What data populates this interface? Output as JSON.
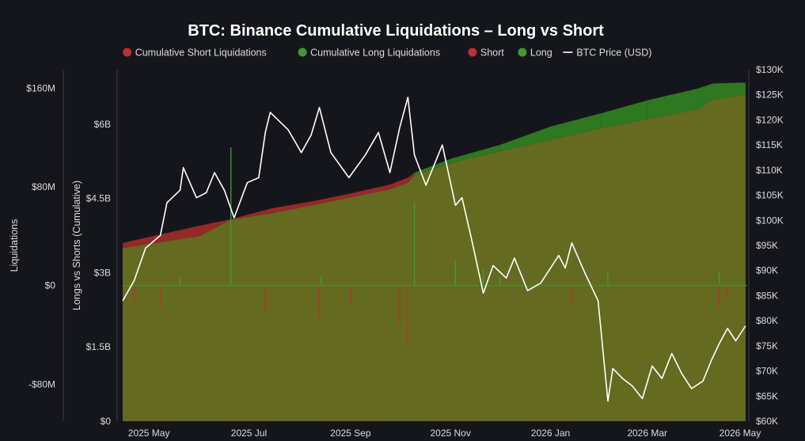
{
  "chart_data": {
    "type": "line",
    "title": "BTC: Binance Cumulative Liquidations – Long vs Short",
    "legend": {
      "placement": "top-center",
      "entries": [
        {
          "label": "Cumulative Short Liquidations",
          "color": "#b83232",
          "marker": "dot"
        },
        {
          "label": "Cumulative Long Liquidations",
          "color": "#3f9a2e",
          "marker": "dot"
        },
        {
          "label": "Short",
          "color": "#b83232",
          "marker": "dot"
        },
        {
          "label": "Long",
          "color": "#3f9a2e",
          "marker": "dot"
        },
        {
          "label": "BTC Price (USD)",
          "color": "#ffffff",
          "marker": "line"
        }
      ]
    },
    "x_axis": {
      "type": "date",
      "range": [
        "2025-04-15",
        "2026-05-01"
      ],
      "ticks": [
        {
          "date": "2025-05-01",
          "label": "2025 May"
        },
        {
          "date": "2025-07-01",
          "label": "2025 Jul"
        },
        {
          "date": "2025-09-01",
          "label": "2025 Sep"
        },
        {
          "date": "2025-11-01",
          "label": "2025 Nov"
        },
        {
          "date": "2026-01-01",
          "label": "2026 Jan"
        },
        {
          "date": "2026-03-01",
          "label": "2026 Mar"
        },
        {
          "date": "2026-05-01",
          "label": "2026 May"
        }
      ]
    },
    "y_axis_liquidations": {
      "label": "Liquidations",
      "range": [
        -110,
        175
      ],
      "unit": "M USD",
      "ticks": [
        {
          "value": 160,
          "label": "$160M"
        },
        {
          "value": 80,
          "label": "$80M"
        },
        {
          "value": 0,
          "label": "$0"
        },
        {
          "value": -80,
          "label": "-$80M"
        }
      ]
    },
    "y_axis_cumulative": {
      "label": "Longs vs Shorts (Cumulative)",
      "range": [
        0,
        7.1
      ],
      "unit": "B USD",
      "ticks": [
        {
          "value": 6,
          "label": "$6B"
        },
        {
          "value": 4.5,
          "label": "$4.5B"
        },
        {
          "value": 3,
          "label": "$3B"
        },
        {
          "value": 1.5,
          "label": "$1.5B"
        },
        {
          "value": 0,
          "label": "$0"
        }
      ]
    },
    "y_axis_price": {
      "range": [
        60000,
        130000
      ],
      "unit": "USD",
      "ticks": [
        {
          "value": 130000,
          "label": "$130K"
        },
        {
          "value": 125000,
          "label": "$125K"
        },
        {
          "value": 120000,
          "label": "$120K"
        },
        {
          "value": 115000,
          "label": "$115K"
        },
        {
          "value": 110000,
          "label": "$110K"
        },
        {
          "value": 105000,
          "label": "$105K"
        },
        {
          "value": 100000,
          "label": "$100K"
        },
        {
          "value": 95000,
          "label": "$95K"
        },
        {
          "value": 90000,
          "label": "$90K"
        },
        {
          "value": 85000,
          "label": "$85K"
        },
        {
          "value": 80000,
          "label": "$80K"
        },
        {
          "value": 75000,
          "label": "$75K"
        },
        {
          "value": 70000,
          "label": "$70K"
        },
        {
          "value": 65000,
          "label": "$65K"
        },
        {
          "value": 60000,
          "label": "$60K"
        }
      ]
    },
    "series": [
      {
        "name": "Cumulative Short Liquidations",
        "axis": "cumulative",
        "color": "#b83232",
        "points": [
          [
            "2025-04-15",
            3.6
          ],
          [
            "2025-05-01",
            3.72
          ],
          [
            "2025-06-01",
            3.95
          ],
          [
            "2025-06-20",
            4.08
          ],
          [
            "2025-07-15",
            4.3
          ],
          [
            "2025-08-10",
            4.45
          ],
          [
            "2025-09-01",
            4.6
          ],
          [
            "2025-09-25",
            4.78
          ],
          [
            "2025-10-06",
            4.92
          ],
          [
            "2025-10-20",
            5.08
          ],
          [
            "2025-11-05",
            5.25
          ],
          [
            "2025-12-01",
            5.45
          ],
          [
            "2026-01-01",
            5.68
          ],
          [
            "2026-02-01",
            5.92
          ],
          [
            "2026-03-01",
            6.1
          ],
          [
            "2026-04-01",
            6.3
          ],
          [
            "2026-04-10",
            6.5
          ],
          [
            "2026-04-30",
            6.6
          ]
        ]
      },
      {
        "name": "Cumulative Long Liquidations",
        "axis": "cumulative",
        "color": "#3f9a2e",
        "points": [
          [
            "2025-04-15",
            3.5
          ],
          [
            "2025-05-01",
            3.58
          ],
          [
            "2025-06-01",
            3.74
          ],
          [
            "2025-06-20",
            4.07
          ],
          [
            "2025-07-15",
            4.2
          ],
          [
            "2025-08-10",
            4.37
          ],
          [
            "2025-09-01",
            4.52
          ],
          [
            "2025-09-25",
            4.68
          ],
          [
            "2025-10-06",
            4.82
          ],
          [
            "2025-10-10",
            5.02
          ],
          [
            "2025-11-01",
            5.3
          ],
          [
            "2025-12-01",
            5.58
          ],
          [
            "2026-01-01",
            5.95
          ],
          [
            "2026-02-01",
            6.22
          ],
          [
            "2026-03-01",
            6.48
          ],
          [
            "2026-04-01",
            6.72
          ],
          [
            "2026-04-10",
            6.82
          ],
          [
            "2026-04-30",
            6.84
          ]
        ]
      },
      {
        "name": "BTC Price (USD)",
        "axis": "price",
        "color": "#ffffff",
        "points": [
          [
            "2025-04-15",
            84000
          ],
          [
            "2025-04-22",
            88000
          ],
          [
            "2025-04-29",
            94500
          ],
          [
            "2025-05-08",
            97000
          ],
          [
            "2025-05-12",
            103500
          ],
          [
            "2025-05-20",
            106000
          ],
          [
            "2025-05-22",
            110500
          ],
          [
            "2025-05-30",
            104500
          ],
          [
            "2025-06-05",
            105500
          ],
          [
            "2025-06-10",
            109500
          ],
          [
            "2025-06-16",
            106000
          ],
          [
            "2025-06-22",
            100500
          ],
          [
            "2025-06-30",
            107500
          ],
          [
            "2025-07-07",
            108500
          ],
          [
            "2025-07-11",
            117500
          ],
          [
            "2025-07-14",
            121500
          ],
          [
            "2025-07-25",
            118000
          ],
          [
            "2025-08-02",
            113500
          ],
          [
            "2025-08-08",
            117000
          ],
          [
            "2025-08-13",
            122500
          ],
          [
            "2025-08-20",
            113500
          ],
          [
            "2025-08-31",
            108500
          ],
          [
            "2025-09-10",
            113000
          ],
          [
            "2025-09-18",
            117500
          ],
          [
            "2025-09-25",
            109500
          ],
          [
            "2025-10-01",
            118500
          ],
          [
            "2025-10-06",
            124500
          ],
          [
            "2025-10-10",
            113000
          ],
          [
            "2025-10-17",
            107000
          ],
          [
            "2025-10-27",
            115000
          ],
          [
            "2025-11-04",
            103000
          ],
          [
            "2025-11-08",
            104500
          ],
          [
            "2025-11-14",
            96000
          ],
          [
            "2025-11-21",
            85500
          ],
          [
            "2025-11-27",
            91000
          ],
          [
            "2025-12-05",
            88500
          ],
          [
            "2025-12-10",
            92500
          ],
          [
            "2025-12-18",
            86000
          ],
          [
            "2025-12-26",
            87500
          ],
          [
            "2026-01-06",
            93000
          ],
          [
            "2026-01-10",
            90500
          ],
          [
            "2026-01-14",
            95500
          ],
          [
            "2026-01-22",
            89500
          ],
          [
            "2026-01-30",
            84000
          ],
          [
            "2026-02-05",
            64000
          ],
          [
            "2026-02-08",
            70500
          ],
          [
            "2026-02-14",
            68500
          ],
          [
            "2026-02-20",
            67000
          ],
          [
            "2026-02-26",
            64500
          ],
          [
            "2026-03-04",
            71000
          ],
          [
            "2026-03-10",
            68500
          ],
          [
            "2026-03-16",
            73500
          ],
          [
            "2026-03-22",
            69500
          ],
          [
            "2026-03-28",
            66500
          ],
          [
            "2026-04-04",
            68000
          ],
          [
            "2026-04-09",
            72000
          ],
          [
            "2026-04-14",
            75500
          ],
          [
            "2026-04-19",
            78500
          ],
          [
            "2026-04-24",
            76000
          ],
          [
            "2026-04-30",
            79000
          ]
        ]
      },
      {
        "name": "Long",
        "axis": "liquidations",
        "color": "#3f9a2e",
        "points": [
          [
            "2025-06-20",
            112
          ],
          [
            "2025-10-10",
            68
          ],
          [
            "2025-11-04",
            21
          ],
          [
            "2025-11-21",
            14
          ],
          [
            "2026-02-05",
            11
          ],
          [
            "2026-04-14",
            12
          ],
          [
            "2025-05-20",
            6
          ],
          [
            "2025-08-14",
            8
          ],
          [
            "2025-12-01",
            7
          ]
        ]
      },
      {
        "name": "Short",
        "axis": "liquidations",
        "color": "#b83232",
        "points": [
          [
            "2025-04-22",
            -12
          ],
          [
            "2025-05-08",
            -18
          ],
          [
            "2025-07-11",
            -22
          ],
          [
            "2025-08-13",
            -26
          ],
          [
            "2025-09-01",
            -15
          ],
          [
            "2025-10-01",
            -31
          ],
          [
            "2025-10-06",
            -48
          ],
          [
            "2026-01-14",
            -14
          ],
          [
            "2026-04-14",
            -18
          ],
          [
            "2026-04-19",
            -10
          ]
        ]
      }
    ]
  }
}
